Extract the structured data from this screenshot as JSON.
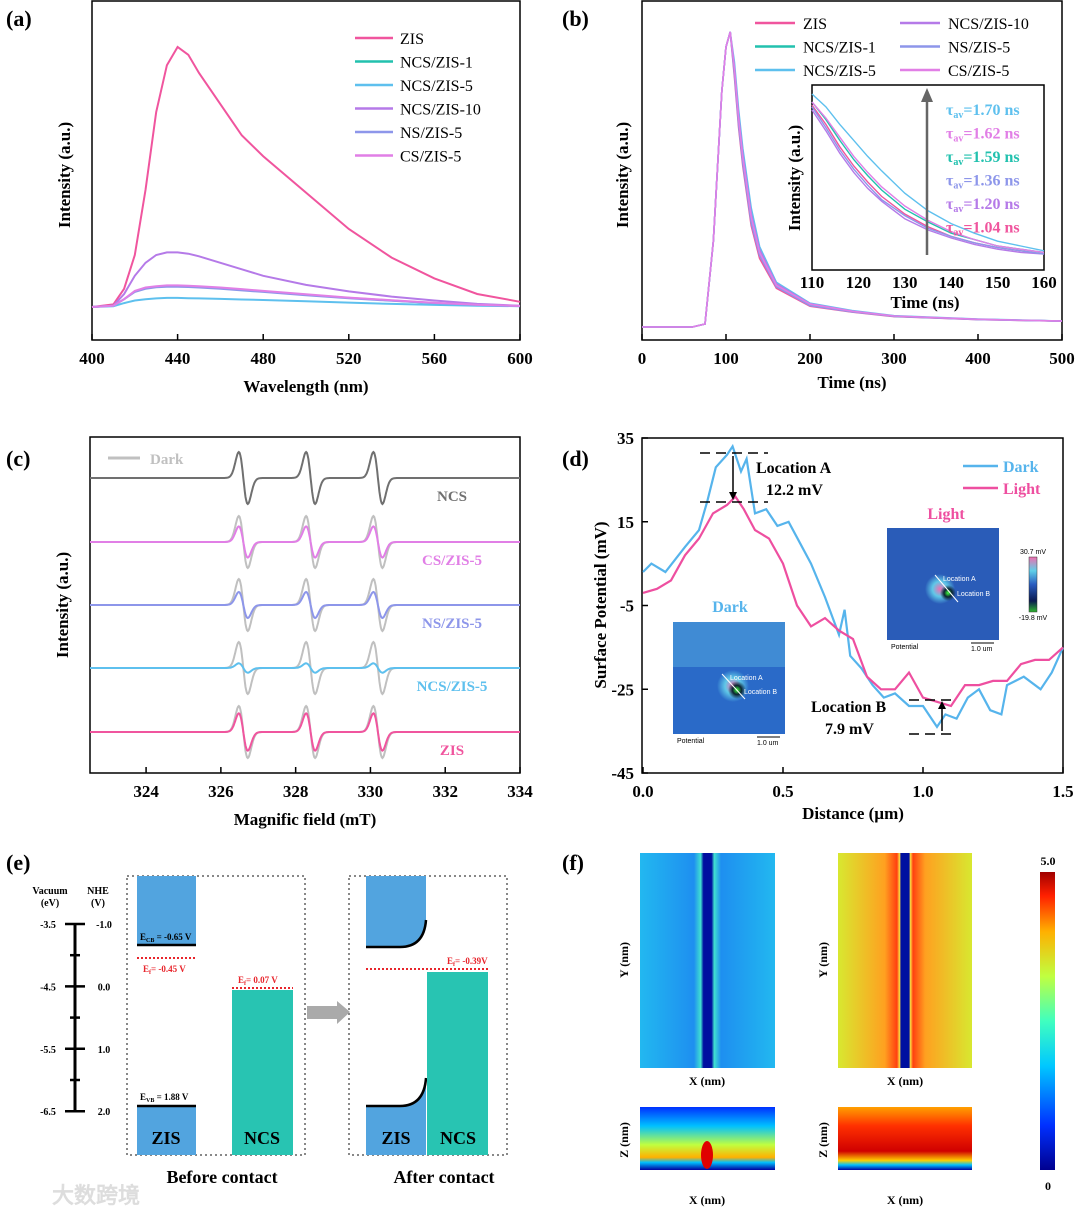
{
  "panels": {
    "a": "(a)",
    "b": "(b)",
    "c": "(c)",
    "d": "(d)",
    "e": "(e)",
    "f": "(f)"
  },
  "colors": {
    "ZIS": "#f0559e",
    "NCS/ZIS-1": "#22c1ae",
    "NCS/ZIS-5": "#5ec0ee",
    "NCS/ZIS-10": "#b57ae8",
    "NS/ZIS-5": "#8d96ea",
    "CS/ZIS-5": "#e17fe6",
    "dark_gray": "#c0c0c0",
    "NCS": "#707070",
    "dark": "#56b4ec",
    "light": "#ee4fa0",
    "zis_block": "#52a4df",
    "ncs_block": "#28c4b2",
    "fermi": "#e8252c"
  },
  "chart_data": [
    {
      "id": "a",
      "type": "line",
      "xlabel": "Wavelength (nm)",
      "ylabel": "Intensity (a.u.)",
      "xlim": [
        400,
        600
      ],
      "ylim": [
        0,
        1.18
      ],
      "xticks": [
        400,
        440,
        480,
        520,
        560,
        600
      ],
      "legend": "top-right",
      "x": [
        400,
        410,
        415,
        420,
        425,
        430,
        435,
        440,
        445,
        450,
        460,
        470,
        480,
        500,
        520,
        540,
        560,
        580,
        600
      ],
      "series": [
        {
          "name": "ZIS",
          "values": [
            0,
            0.01,
            0.07,
            0.2,
            0.45,
            0.75,
            0.93,
            1.0,
            0.97,
            0.9,
            0.78,
            0.66,
            0.58,
            0.44,
            0.3,
            0.19,
            0.11,
            0.05,
            0.02
          ]
        },
        {
          "name": "NCS/ZIS-1",
          "values": [
            0,
            0.005,
            0.03,
            0.06,
            0.072,
            0.078,
            0.08,
            0.08,
            0.079,
            0.077,
            0.072,
            0.066,
            0.06,
            0.047,
            0.035,
            0.025,
            0.015,
            0.008,
            0.004
          ]
        },
        {
          "name": "NCS/ZIS-5",
          "values": [
            0,
            0.003,
            0.015,
            0.025,
            0.03,
            0.033,
            0.035,
            0.035,
            0.034,
            0.033,
            0.031,
            0.029,
            0.027,
            0.022,
            0.017,
            0.012,
            0.008,
            0.005,
            0.003
          ]
        },
        {
          "name": "NCS/ZIS-10",
          "values": [
            0,
            0.005,
            0.05,
            0.12,
            0.17,
            0.2,
            0.21,
            0.21,
            0.205,
            0.195,
            0.17,
            0.145,
            0.12,
            0.085,
            0.06,
            0.04,
            0.025,
            0.012,
            0.005
          ]
        },
        {
          "name": "NS/ZIS-5",
          "values": [
            0,
            0.005,
            0.03,
            0.058,
            0.07,
            0.076,
            0.078,
            0.078,
            0.077,
            0.075,
            0.07,
            0.064,
            0.058,
            0.045,
            0.034,
            0.024,
            0.015,
            0.008,
            0.004
          ]
        },
        {
          "name": "CS/ZIS-5",
          "values": [
            0,
            0.005,
            0.03,
            0.062,
            0.075,
            0.08,
            0.083,
            0.083,
            0.082,
            0.08,
            0.075,
            0.069,
            0.062,
            0.049,
            0.036,
            0.026,
            0.016,
            0.009,
            0.004
          ]
        }
      ]
    },
    {
      "id": "b",
      "type": "line",
      "xlabel": "Time (ns)",
      "ylabel": "Intensity (a.u.)",
      "xlim": [
        0,
        500
      ],
      "ylim": [
        0,
        1.05
      ],
      "xticks": [
        0,
        100,
        200,
        300,
        400,
        500
      ],
      "legend": "top-right",
      "x": [
        0,
        60,
        75,
        85,
        95,
        100,
        105,
        110,
        115,
        120,
        130,
        140,
        160,
        200,
        250,
        300,
        400,
        500
      ],
      "series": [
        {
          "name": "ZIS",
          "values": [
            0.01,
            0.01,
            0.02,
            0.3,
            0.8,
            0.95,
            1.0,
            0.85,
            0.68,
            0.55,
            0.35,
            0.24,
            0.14,
            0.08,
            0.06,
            0.045,
            0.035,
            0.03
          ]
        },
        {
          "name": "NCS/ZIS-1",
          "values": [
            0.01,
            0.01,
            0.02,
            0.3,
            0.8,
            0.95,
            1.0,
            0.87,
            0.7,
            0.57,
            0.37,
            0.26,
            0.15,
            0.085,
            0.062,
            0.046,
            0.036,
            0.03
          ]
        },
        {
          "name": "NCS/ZIS-5",
          "values": [
            0.01,
            0.01,
            0.02,
            0.3,
            0.8,
            0.95,
            1.0,
            0.9,
            0.74,
            0.61,
            0.41,
            0.28,
            0.16,
            0.09,
            0.065,
            0.048,
            0.037,
            0.03
          ]
        },
        {
          "name": "NCS/ZIS-10",
          "values": [
            0.01,
            0.01,
            0.02,
            0.3,
            0.8,
            0.95,
            1.0,
            0.88,
            0.72,
            0.59,
            0.39,
            0.27,
            0.155,
            0.088,
            0.063,
            0.047,
            0.036,
            0.03
          ]
        },
        {
          "name": "NS/ZIS-5",
          "values": [
            0.01,
            0.01,
            0.02,
            0.3,
            0.8,
            0.95,
            1.0,
            0.86,
            0.69,
            0.56,
            0.36,
            0.25,
            0.145,
            0.082,
            0.061,
            0.046,
            0.035,
            0.03
          ]
        },
        {
          "name": "CS/ZIS-5",
          "values": [
            0.01,
            0.01,
            0.02,
            0.3,
            0.8,
            0.95,
            1.0,
            0.88,
            0.71,
            0.58,
            0.38,
            0.26,
            0.15,
            0.087,
            0.063,
            0.047,
            0.036,
            0.03
          ]
        }
      ],
      "inset": {
        "xlabel": "Time (ns)",
        "ylabel": "Intensity (a.u.)",
        "xlim": [
          110,
          160
        ],
        "xticks": [
          110,
          120,
          130,
          140,
          150,
          160
        ],
        "x": [
          110,
          113,
          116,
          119,
          122,
          125,
          130,
          135,
          140,
          145,
          150,
          155,
          160
        ],
        "series": [
          {
            "name": "ZIS",
            "values": [
              0.98,
              0.86,
              0.72,
              0.6,
              0.5,
              0.41,
              0.3,
              0.22,
              0.16,
              0.12,
              0.09,
              0.07,
              0.05
            ]
          },
          {
            "name": "NCS/ZIS-1",
            "values": [
              1.0,
              0.89,
              0.76,
              0.64,
              0.54,
              0.45,
              0.33,
              0.25,
              0.18,
              0.14,
              0.1,
              0.08,
              0.06
            ]
          },
          {
            "name": "NCS/ZIS-5",
            "values": [
              1.05,
              0.97,
              0.86,
              0.76,
              0.66,
              0.57,
              0.43,
              0.32,
              0.24,
              0.18,
              0.13,
              0.1,
              0.07
            ]
          },
          {
            "name": "NCS/ZIS-10",
            "values": [
              0.95,
              0.82,
              0.68,
              0.56,
              0.46,
              0.38,
              0.27,
              0.2,
              0.15,
              0.11,
              0.08,
              0.06,
              0.05
            ]
          },
          {
            "name": "NS/ZIS-5",
            "values": [
              0.97,
              0.84,
              0.7,
              0.58,
              0.48,
              0.39,
              0.29,
              0.21,
              0.16,
              0.12,
              0.09,
              0.07,
              0.05
            ]
          },
          {
            "name": "CS/ZIS-5",
            "values": [
              1.0,
              0.9,
              0.78,
              0.66,
              0.56,
              0.47,
              0.35,
              0.26,
              0.19,
              0.14,
              0.1,
              0.08,
              0.06
            ]
          }
        ],
        "tau_labels": [
          {
            "series": "NCS/ZIS-5",
            "text": "1.70 ns"
          },
          {
            "series": "CS/ZIS-5",
            "text": "1.62 ns"
          },
          {
            "series": "NCS/ZIS-1",
            "text": "1.59 ns"
          },
          {
            "series": "NS/ZIS-5",
            "text": "1.36 ns"
          },
          {
            "series": "NCS/ZIS-10",
            "text": "1.20 ns"
          },
          {
            "series": "ZIS",
            "text": "1.04 ns"
          }
        ]
      }
    },
    {
      "id": "c",
      "type": "line",
      "xlabel": "Magnific field (mT)",
      "ylabel": "Intensity (a.u.)",
      "xlim": [
        322.5,
        334
      ],
      "xticks": [
        324,
        326,
        328,
        330,
        332,
        334
      ],
      "peak_centers": [
        326.6,
        328.4,
        330.2
      ],
      "legend_dark": "Dark",
      "traces": [
        {
          "name": "NCS",
          "amplitude": 1.0,
          "dark_amplitude": null
        },
        {
          "name": "CS/ZIS-5",
          "amplitude": 0.6,
          "dark_amplitude": 1.0
        },
        {
          "name": "NS/ZIS-5",
          "amplitude": 0.5,
          "dark_amplitude": 1.0
        },
        {
          "name": "NCS/ZIS-5",
          "amplitude": 0.18,
          "dark_amplitude": 1.0
        },
        {
          "name": "ZIS",
          "amplitude": 0.72,
          "dark_amplitude": 1.0
        }
      ]
    },
    {
      "id": "d",
      "type": "line",
      "xlabel": "Distance (µm)",
      "ylabel": "Surface Potential (mV)",
      "xlim": [
        0,
        1.5
      ],
      "ylim": [
        -45,
        35
      ],
      "xticks": [
        "0.0",
        "0.5",
        "1.0",
        "1.5"
      ],
      "yticks": [
        35,
        15,
        -5,
        -25,
        -45
      ],
      "legend": "top-right",
      "series": [
        {
          "name": "Dark",
          "x": [
            0,
            0.03,
            0.08,
            0.15,
            0.2,
            0.23,
            0.26,
            0.3,
            0.32,
            0.35,
            0.37,
            0.4,
            0.44,
            0.48,
            0.52,
            0.56,
            0.6,
            0.65,
            0.7,
            0.72,
            0.74,
            0.78,
            0.82,
            0.86,
            0.9,
            0.95,
            1.0,
            1.05,
            1.08,
            1.12,
            1.16,
            1.2,
            1.24,
            1.28,
            1.3,
            1.36,
            1.42,
            1.46,
            1.5
          ],
          "values": [
            3,
            5,
            3,
            9,
            13,
            20,
            28,
            31,
            33,
            27,
            30,
            17,
            18,
            14,
            15,
            10,
            5,
            -3,
            -12,
            -6,
            -17,
            -20,
            -24,
            -27,
            -26,
            -29,
            -29,
            -34,
            -31,
            -32,
            -27,
            -25,
            -30,
            -31,
            -24,
            -22,
            -25,
            -21,
            -15
          ]
        },
        {
          "name": "Light",
          "x": [
            0,
            0.05,
            0.1,
            0.15,
            0.2,
            0.25,
            0.3,
            0.33,
            0.36,
            0.4,
            0.45,
            0.5,
            0.55,
            0.6,
            0.65,
            0.7,
            0.75,
            0.8,
            0.85,
            0.9,
            0.95,
            1.0,
            1.05,
            1.1,
            1.15,
            1.2,
            1.25,
            1.3,
            1.35,
            1.4,
            1.45,
            1.5
          ],
          "values": [
            -2,
            -1,
            1,
            7,
            11,
            17,
            19,
            21,
            18,
            13,
            11,
            5,
            -5,
            -10,
            -8,
            -11,
            -13,
            -22,
            -25,
            -25,
            -21,
            -27,
            -28,
            -29,
            -24,
            -24,
            -23,
            -23,
            -19,
            -18,
            -18,
            -15
          ]
        }
      ],
      "annotations": {
        "loc_a": "Location A",
        "loc_a_val": "12.2 mV",
        "loc_b": "Location B",
        "loc_b_val": "7.9 mV"
      },
      "insets": {
        "dark_title": "Dark",
        "light_title": "Light",
        "potential": "Potential",
        "scale": "1.0 um",
        "location_a": "Location A",
        "location_b": "Location B",
        "cbar_max": "30.7 mV",
        "cbar_min": "-19.8 mV"
      }
    }
  ],
  "panel_e": {
    "vacuum_label": "Vacuum",
    "vacuum_unit": "(eV)",
    "nhe_label": "NHE",
    "nhe_unit": "(V)",
    "vacuum_ticks": [
      "-3.5",
      "-4.5",
      "-5.5",
      "-6.5"
    ],
    "nhe_ticks": [
      "-1.0",
      "0.0",
      "1.0",
      "2.0"
    ],
    "ecb": "E",
    "ecb_sub": "CB",
    "ecb_val": " = -0.65 V",
    "evb": "E",
    "evb_sub": "VB",
    "evb_val": " = 1.88 V",
    "ef_zis": "E",
    "ef_sub": "f",
    "ef_zis_val": "= -0.45 V",
    "ef_ncs_val": "= 0.07 V",
    "ef_after_val": "= -0.39V",
    "zis": "ZIS",
    "ncs": "NCS",
    "before": "Before contact",
    "after": "After contact"
  },
  "panel_f": {
    "ylabel": "Y (nm)",
    "xlabel": "X (nm)",
    "zlabel": "Z (nm)",
    "cbar_max": "5.0",
    "cbar_min": "0"
  },
  "watermark": "大数跨境"
}
